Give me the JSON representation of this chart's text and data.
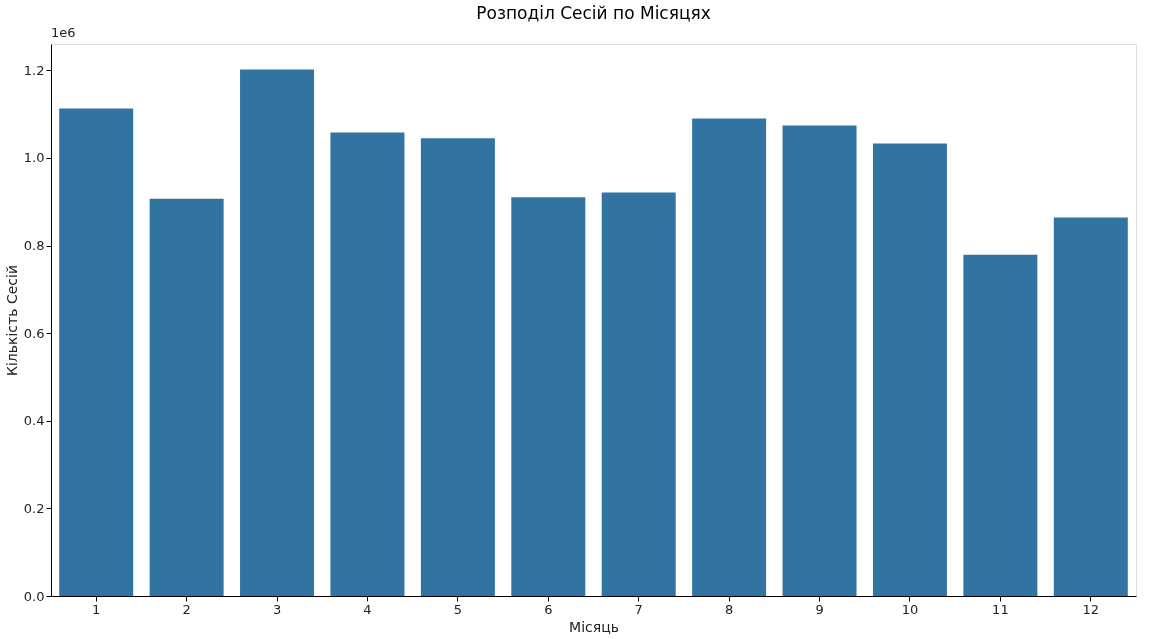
{
  "chart_data": {
    "type": "bar",
    "title": "Розподіл Сесій по Місяцях",
    "xlabel": "Місяць",
    "ylabel": "Кількість Сесій",
    "categories": [
      "1",
      "2",
      "3",
      "4",
      "5",
      "6",
      "7",
      "8",
      "9",
      "10",
      "11",
      "12"
    ],
    "values": [
      1.113,
      0.907,
      1.202,
      1.058,
      1.045,
      0.91,
      0.921,
      1.09,
      1.074,
      1.033,
      0.779,
      0.864
    ],
    "color": "#3274a1",
    "ylim": [
      0,
      1.26
    ],
    "yticks": [
      {
        "value": 0,
        "label": "0.0"
      },
      0.2,
      0.4,
      0.6,
      0.8,
      {
        "value": 1,
        "label": "1.0"
      },
      1.2
    ],
    "annotations": [
      "1e6"
    ],
    "grid": false
  }
}
